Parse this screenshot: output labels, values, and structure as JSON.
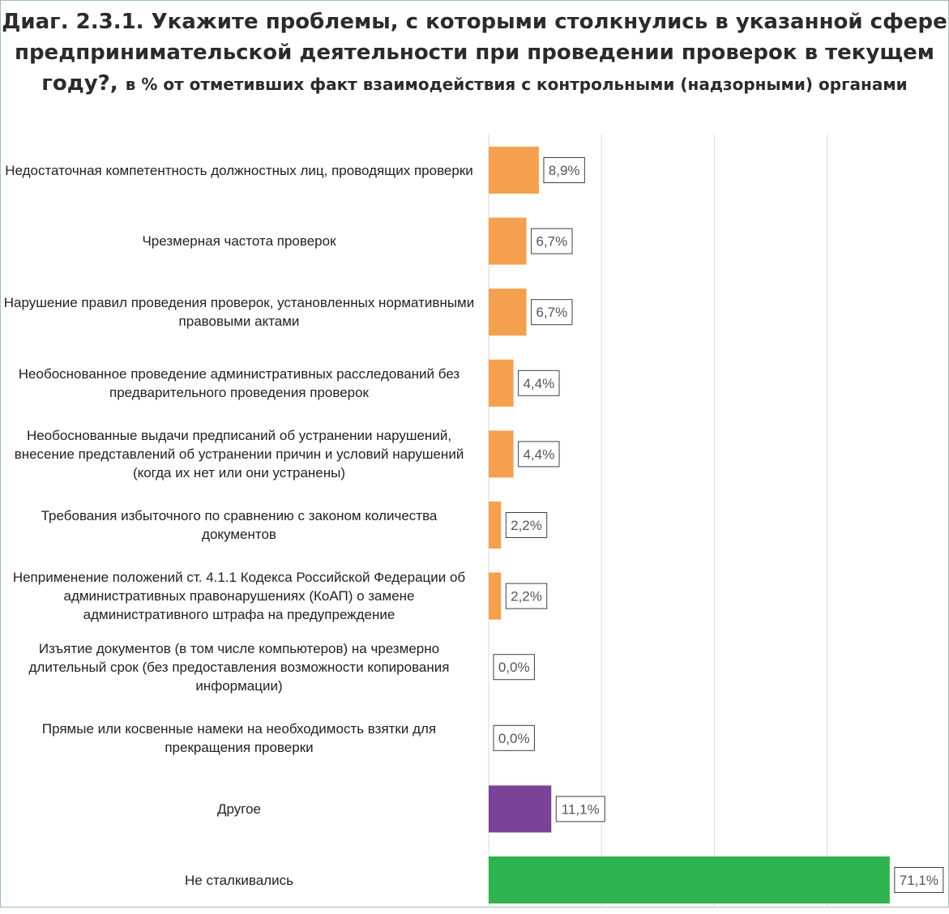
{
  "title": {
    "main": "Диаг. 2.3.1. Укажите проблемы, с которыми столкнулись в указанной сфере предпринимательской деятельности при проведении проверок в текущем году?,",
    "sub": "в % от отметивших факт взаимодействия с контрольными (надзорными) органами"
  },
  "colors": {
    "orange": "#F5A04F",
    "purple": "#7A4398",
    "green": "#2DB34F",
    "grid": "#D9D9D9",
    "label_border": "#404040"
  },
  "chart_data": {
    "type": "bar",
    "orientation": "horizontal",
    "xlim": [
      0,
      100
    ],
    "grid": true,
    "categories": [
      "Недостаточная компетентность должностных лиц, проводящих проверки",
      "Чрезмерная частота проверок",
      "Нарушение правил проведения проверок, установленных нормативными правовыми актами",
      "Необоснованное проведение административных расследований без предварительного проведения проверок",
      "Необоснованные выдачи предписаний об устранении нарушений, внесение представлений об устранении причин и условий нарушений (когда их нет или они устранены)",
      "Требования избыточного по сравнению с законом количества документов",
      "Неприменение положений ст. 4.1.1 Кодекса Российской Федерации об административных правонарушениях (КоАП) о замене административного штрафа на предупреждение",
      "Изъятие документов (в том числе компьютеров) на чрезмерно длительный срок (без предоставления возможности копирования информации)",
      "Прямые или косвенные намеки на необходимость взятки для прекращения проверки",
      "Другое",
      "Не сталкивались"
    ],
    "values": [
      8.9,
      6.7,
      6.7,
      4.4,
      4.4,
      2.2,
      2.2,
      0.0,
      0.0,
      11.1,
      71.1
    ],
    "value_labels": [
      "8,9%",
      "6,7%",
      "6,7%",
      "4,4%",
      "4,4%",
      "2,2%",
      "2,2%",
      "0,0%",
      "0,0%",
      "11,1%",
      "71,1%"
    ],
    "bar_colors": [
      "#F5A04F",
      "#F5A04F",
      "#F5A04F",
      "#F5A04F",
      "#F5A04F",
      "#F5A04F",
      "#F5A04F",
      "#F5A04F",
      "#F5A04F",
      "#7A4398",
      "#2DB34F"
    ]
  }
}
